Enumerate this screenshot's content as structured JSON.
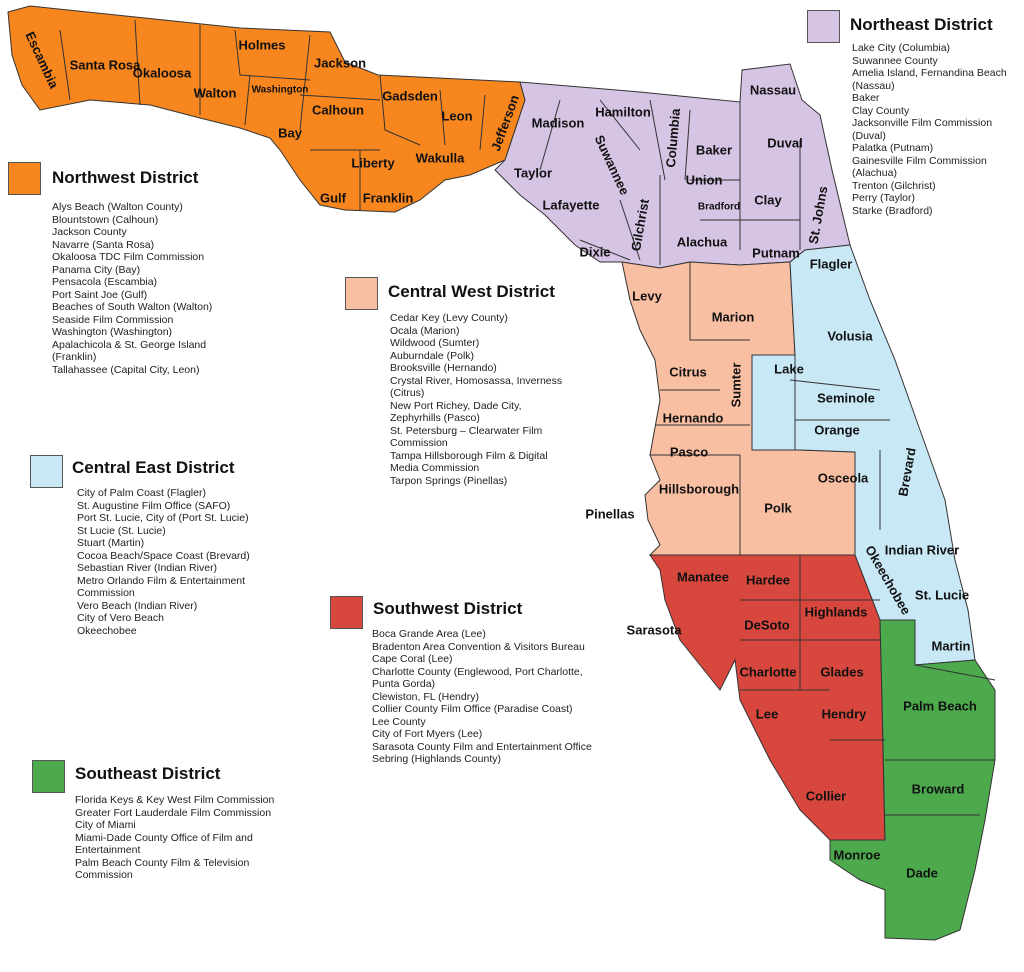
{
  "colors": {
    "northwest": "#F7861E",
    "northeast": "#D6C4E4",
    "central_west": "#F8BFA3",
    "central_east": "#C8E8F6",
    "southwest": "#D8473D",
    "southeast": "#4CAA4D",
    "water_border": "#333333"
  },
  "districts": [
    {
      "key": "northeast",
      "title": "Northeast District",
      "items": [
        "Lake City (Columbia)",
        "Suwannee County",
        "Amelia Island, Fernandina Beach (Nassau)",
        "Baker",
        "Clay County",
        "Jacksonville Film Commission (Duval)",
        "Palatka (Putnam)",
        "Gainesville Film Commission (Alachua)",
        "Trenton (Gilchrist)",
        "Perry (Taylor)",
        "Starke (Bradford)"
      ]
    },
    {
      "key": "northwest",
      "title": "Northwest District",
      "items": [
        "Alys Beach (Walton County)",
        "Blountstown (Calhoun)",
        "Jackson County",
        "Navarre (Santa Rosa)",
        "Okaloosa TDC Film Commission",
        "Panama City (Bay)",
        "Pensacola (Escambia)",
        "Port Saint Joe (Gulf)",
        "Beaches of South Walton (Walton)",
        "Seaside Film Commission",
        "Washington (Washington)",
        "Apalachicola & St. George Island (Franklin)",
        "Tallahassee (Capital City, Leon)"
      ]
    },
    {
      "key": "central_west",
      "title": "Central West District",
      "items": [
        "Cedar Key (Levy County)",
        "Ocala (Marion)",
        "Wildwood (Sumter)",
        "Auburndale (Polk)",
        "Brooksville (Hernando)",
        "Crystal River, Homosassa, Inverness (Citrus)",
        "New Port Richey, Dade City, Zephyrhills (Pasco)",
        "St. Petersburg – Clearwater Film Commission",
        "Tampa Hillsborough Film & Digital Media Commission",
        "Tarpon Springs (Pinellas)"
      ]
    },
    {
      "key": "central_east",
      "title": "Central East District",
      "items": [
        "City of Palm Coast (Flagler)",
        "St. Augustine Film Office (SAFO)",
        "Port St. Lucie, City of (Port St. Lucie)",
        "St Lucie (St. Lucie)",
        "Stuart (Martin)",
        "Cocoa Beach/Space Coast (Brevard)",
        "Sebastian River (Indian River)",
        "Metro Orlando Film & Entertainment Commission",
        "Vero Beach (Indian River)",
        "City of Vero Beach",
        "Okeechobee"
      ]
    },
    {
      "key": "southwest",
      "title": "Southwest District",
      "items": [
        "Boca Grande Area (Lee)",
        "Bradenton Area Convention & Visitors Bureau",
        "Cape Coral (Lee)",
        "Charlotte County (Englewood, Port Charlotte, Punta Gorda)",
        "Clewiston, FL (Hendry)",
        "Collier County Film Office (Paradise Coast)",
        "Lee County",
        "City of Fort Myers (Lee)",
        "Sarasota County Film and Entertainment Office",
        "Sebring (Highlands County)"
      ]
    },
    {
      "key": "southeast",
      "title": "Southeast District",
      "items": [
        "Florida Keys & Key West Film Commission",
        "Greater Fort Lauderdale Film Commission",
        "City of Miami",
        "Miami-Dade County Office of Film and Entertainment",
        "Palm Beach County Film & Television Commission"
      ]
    }
  ],
  "counties": [
    "Escambia",
    "Santa Rosa",
    "Okaloosa",
    "Walton",
    "Holmes",
    "Washington",
    "Jackson",
    "Bay",
    "Calhoun",
    "Gadsden",
    "Leon",
    "Jefferson",
    "Liberty",
    "Wakulla",
    "Gulf",
    "Franklin",
    "Madison",
    "Hamilton",
    "Columbia",
    "Baker",
    "Nassau",
    "Duval",
    "Taylor",
    "Suwannee",
    "Lafayette",
    "Union",
    "Bradford",
    "Clay",
    "St. Johns",
    "Gilchrist",
    "Alachua",
    "Putnam",
    "Dixie",
    "Flagler",
    "Levy",
    "Marion",
    "Volusia",
    "Citrus",
    "Lake",
    "Seminole",
    "Sumter",
    "Hernando",
    "Orange",
    "Pasco",
    "Osceola",
    "Brevard",
    "Hillsborough",
    "Pinellas",
    "Polk",
    "Indian River",
    "Manatee",
    "Hardee",
    "Okeechobee",
    "Highlands",
    "St. Lucie",
    "DeSoto",
    "Sarasota",
    "Martin",
    "Charlotte",
    "Glades",
    "Lee",
    "Hendry",
    "Palm Beach",
    "Collier",
    "Broward",
    "Monroe",
    "Dade"
  ]
}
